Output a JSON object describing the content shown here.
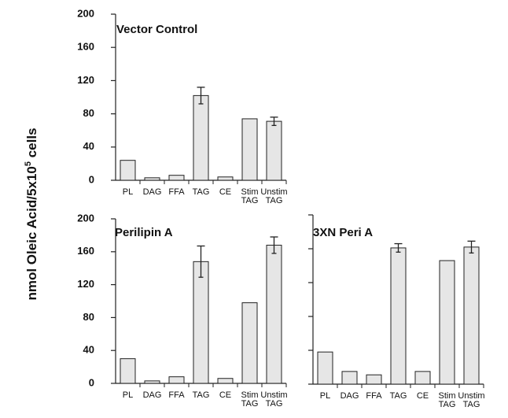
{
  "y_label": [
    "nmol Oleic Acid/5x10",
    "5",
    " cells"
  ],
  "chart_data": [
    {
      "type": "bar",
      "title": "Vector Control",
      "categories": [
        "PL",
        "DAG",
        "FFA",
        "TAG",
        "CE",
        "Stim TAG",
        "Unstim TAG"
      ],
      "values": [
        24,
        3,
        6,
        102,
        4,
        74,
        71
      ],
      "errors": [
        null,
        null,
        null,
        10,
        null,
        null,
        5
      ],
      "color": "#e6e6e6",
      "ylim": [
        0,
        200
      ],
      "yticks": [
        0,
        40,
        80,
        120,
        160,
        200
      ],
      "show_tick_labels": true
    },
    {
      "type": "bar",
      "title": "Perilipin A",
      "categories": [
        "PL",
        "DAG",
        "FFA",
        "TAG",
        "CE",
        "Stim TAG",
        "Unstim TAG"
      ],
      "values": [
        30,
        3,
        8,
        148,
        6,
        98,
        168
      ],
      "errors": [
        null,
        null,
        null,
        19,
        null,
        null,
        10
      ],
      "color": "#e6e6e6",
      "ylim": [
        0,
        200
      ],
      "yticks": [
        0,
        40,
        80,
        120,
        160,
        200
      ],
      "show_tick_labels": true
    },
    {
      "type": "bar",
      "title": "3XN Peri A",
      "categories": [
        "PL",
        "DAG",
        "FFA",
        "TAG",
        "CE",
        "Stim TAG",
        "Unstim TAG"
      ],
      "values": [
        38,
        15,
        11,
        161,
        15,
        146,
        162
      ],
      "errors": [
        null,
        null,
        null,
        5,
        null,
        null,
        7
      ],
      "color": "#e6e6e6",
      "ylim": [
        0,
        200
      ],
      "yticks": [
        0,
        40,
        80,
        120,
        160,
        200
      ],
      "show_tick_labels": false
    }
  ]
}
